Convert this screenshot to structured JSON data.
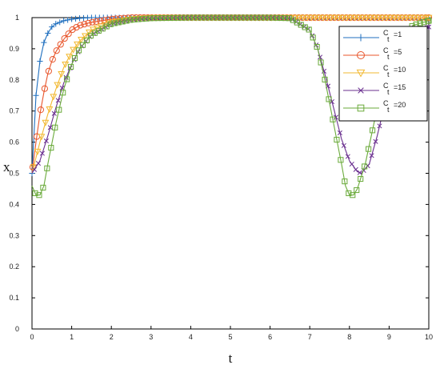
{
  "chart_data": {
    "type": "line",
    "title": "",
    "xlabel": "t",
    "ylabel": "x",
    "xlim": [
      0,
      10
    ],
    "ylim": [
      0,
      1
    ],
    "xticks": [
      0,
      1,
      2,
      3,
      4,
      5,
      6,
      7,
      8,
      9,
      10
    ],
    "yticks": [
      "0",
      "0.1",
      "0.2",
      "0.3",
      "0.4",
      "0.5",
      "0.6",
      "0.7",
      "0.8",
      "0.9",
      "1"
    ],
    "grid": false,
    "legend_position": "top-right",
    "series": [
      {
        "name": "C_t=1",
        "label_main": "C",
        "label_sub": "t",
        "label_value": "=1",
        "color": "#1f6fbf",
        "marker": "plus",
        "x": [
          0,
          0.1,
          0.2,
          0.3,
          0.4,
          0.5,
          0.6,
          0.8,
          1.0,
          1.2,
          1.5,
          2,
          3,
          4,
          5,
          6,
          7,
          8,
          9,
          10
        ],
        "y": [
          0.5,
          0.75,
          0.86,
          0.92,
          0.95,
          0.97,
          0.98,
          0.99,
          0.995,
          0.998,
          1,
          1,
          1,
          1,
          1,
          1,
          1,
          1,
          1,
          1
        ]
      },
      {
        "name": "C_t=5",
        "label_main": "C",
        "label_sub": "t",
        "label_value": "=5",
        "color": "#e8552b",
        "marker": "circle",
        "x": [
          0,
          0.1,
          0.2,
          0.3,
          0.4,
          0.5,
          0.6,
          0.8,
          1.0,
          1.2,
          1.5,
          2,
          2.5,
          3,
          4,
          5,
          6,
          7,
          8,
          9,
          10
        ],
        "y": [
          0.5,
          0.6,
          0.69,
          0.76,
          0.82,
          0.86,
          0.89,
          0.93,
          0.96,
          0.975,
          0.985,
          0.995,
          1,
          1,
          1,
          1,
          1,
          1,
          1,
          1,
          1
        ]
      },
      {
        "name": "C_t=10",
        "label_main": "C",
        "label_sub": "t",
        "label_value": "=10",
        "color": "#f2b830",
        "marker": "triangle-down",
        "x": [
          0,
          0.2,
          0.4,
          0.6,
          0.8,
          1.0,
          1.2,
          1.5,
          2,
          2.5,
          3,
          4,
          5,
          6,
          7,
          8,
          9,
          10
        ],
        "y": [
          0.5,
          0.6,
          0.69,
          0.77,
          0.84,
          0.89,
          0.925,
          0.96,
          0.985,
          0.995,
          1,
          1,
          1,
          1,
          1,
          1,
          1,
          1
        ]
      },
      {
        "name": "C_t=15",
        "label_main": "C",
        "label_sub": "t",
        "label_value": "=15",
        "color": "#6a2f8f",
        "marker": "cross",
        "x": [
          0,
          0.2,
          0.4,
          0.6,
          0.8,
          1.0,
          1.2,
          1.5,
          2,
          2.5,
          3,
          4,
          5,
          6,
          6.5,
          7,
          7.2,
          7.4,
          7.6,
          7.8,
          8.0,
          8.2,
          8.3,
          8.5,
          8.7,
          9.0,
          9.3,
          9.6,
          10
        ],
        "y": [
          0.5,
          0.54,
          0.62,
          0.71,
          0.79,
          0.85,
          0.9,
          0.945,
          0.98,
          0.993,
          0.998,
          1,
          1,
          1,
          0.998,
          0.96,
          0.9,
          0.81,
          0.71,
          0.61,
          0.54,
          0.505,
          0.5,
          0.53,
          0.62,
          0.78,
          0.9,
          0.95,
          0.97
        ]
      },
      {
        "name": "C_t=20",
        "label_main": "C",
        "label_sub": "t",
        "label_value": "=20",
        "color": "#6aaa3a",
        "marker": "square",
        "x": [
          0,
          0.1,
          0.2,
          0.3,
          0.4,
          0.6,
          0.8,
          1.0,
          1.2,
          1.5,
          2,
          2.5,
          3,
          4,
          5,
          6,
          6.5,
          7,
          7.2,
          7.4,
          7.6,
          7.8,
          7.9,
          8.0,
          8.1,
          8.2,
          8.4,
          8.6,
          8.8,
          9.0,
          9.3,
          9.6,
          10
        ],
        "y": [
          0.46,
          0.43,
          0.43,
          0.46,
          0.53,
          0.66,
          0.77,
          0.85,
          0.9,
          0.945,
          0.98,
          0.993,
          0.998,
          1,
          1,
          1,
          0.998,
          0.96,
          0.9,
          0.79,
          0.66,
          0.53,
          0.46,
          0.43,
          0.43,
          0.45,
          0.53,
          0.65,
          0.77,
          0.86,
          0.94,
          0.975,
          0.99
        ]
      }
    ]
  }
}
